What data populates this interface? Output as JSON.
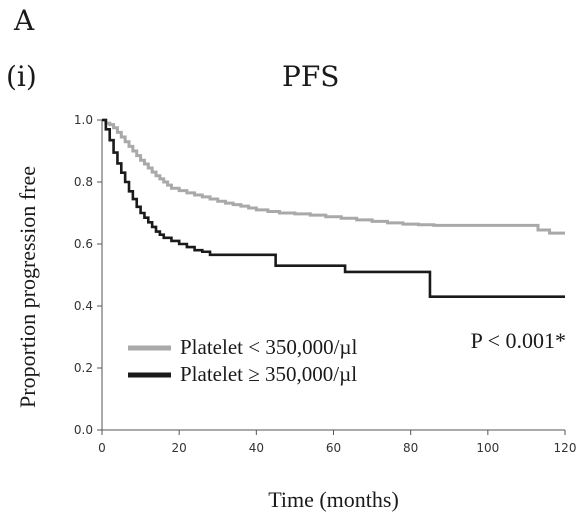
{
  "figure": {
    "panel_label": "A",
    "panel_sublabel": "(i)"
  },
  "chart_data": {
    "type": "line",
    "title": "PFS",
    "xlabel": "Time (months)",
    "ylabel": "Proportion progression free",
    "xlim": [
      0,
      120
    ],
    "ylim": [
      0.0,
      1.0
    ],
    "x_ticks": [
      0,
      20,
      40,
      60,
      80,
      100,
      120
    ],
    "y_ticks": [
      0.0,
      0.2,
      0.4,
      0.6,
      0.8,
      1.0
    ],
    "x_tick_labels": [
      "0",
      "20",
      "40",
      "60",
      "80",
      "100",
      "120"
    ],
    "y_tick_labels": [
      "0.0",
      "0.2",
      "0.4",
      "0.6",
      "0.8",
      "1.0"
    ],
    "grid": false,
    "legend_position": "bottom-left",
    "annotation": "P < 0.001*",
    "series": [
      {
        "name": "Platelet < 350,000/µl",
        "color": "#a9a9a9",
        "step": true,
        "x": [
          0,
          1,
          2,
          3,
          4,
          5,
          6,
          7,
          8,
          9,
          10,
          11,
          12,
          13,
          14,
          15,
          16,
          17,
          18,
          20,
          22,
          24,
          26,
          28,
          30,
          32,
          34,
          36,
          38,
          40,
          43,
          46,
          50,
          54,
          58,
          62,
          66,
          70,
          74,
          78,
          82,
          86,
          90,
          100,
          110,
          113,
          116,
          120
        ],
        "y": [
          1.0,
          0.99,
          0.985,
          0.975,
          0.96,
          0.945,
          0.93,
          0.915,
          0.9,
          0.885,
          0.87,
          0.858,
          0.845,
          0.832,
          0.82,
          0.81,
          0.8,
          0.79,
          0.78,
          0.772,
          0.765,
          0.758,
          0.752,
          0.745,
          0.738,
          0.732,
          0.727,
          0.722,
          0.716,
          0.71,
          0.705,
          0.7,
          0.697,
          0.693,
          0.688,
          0.683,
          0.678,
          0.673,
          0.668,
          0.664,
          0.662,
          0.66,
          0.66,
          0.66,
          0.66,
          0.645,
          0.635,
          0.635
        ]
      },
      {
        "name": "Platelet ≥ 350,000/µl",
        "color": "#1a1a1a",
        "step": true,
        "x": [
          0,
          1,
          2,
          3,
          4,
          5,
          6,
          7,
          8,
          9,
          10,
          11,
          12,
          13,
          14,
          15,
          16,
          18,
          20,
          22,
          24,
          26,
          28,
          33,
          38,
          44,
          45,
          50,
          55,
          60,
          63,
          65,
          70,
          75,
          80,
          84,
          85,
          90,
          100,
          110,
          120
        ],
        "y": [
          1.0,
          0.97,
          0.935,
          0.895,
          0.86,
          0.83,
          0.8,
          0.77,
          0.745,
          0.72,
          0.7,
          0.685,
          0.67,
          0.655,
          0.64,
          0.63,
          0.62,
          0.61,
          0.6,
          0.59,
          0.58,
          0.575,
          0.565,
          0.565,
          0.565,
          0.565,
          0.53,
          0.53,
          0.53,
          0.53,
          0.51,
          0.51,
          0.51,
          0.51,
          0.51,
          0.51,
          0.43,
          0.43,
          0.43,
          0.43,
          0.43
        ]
      }
    ]
  }
}
